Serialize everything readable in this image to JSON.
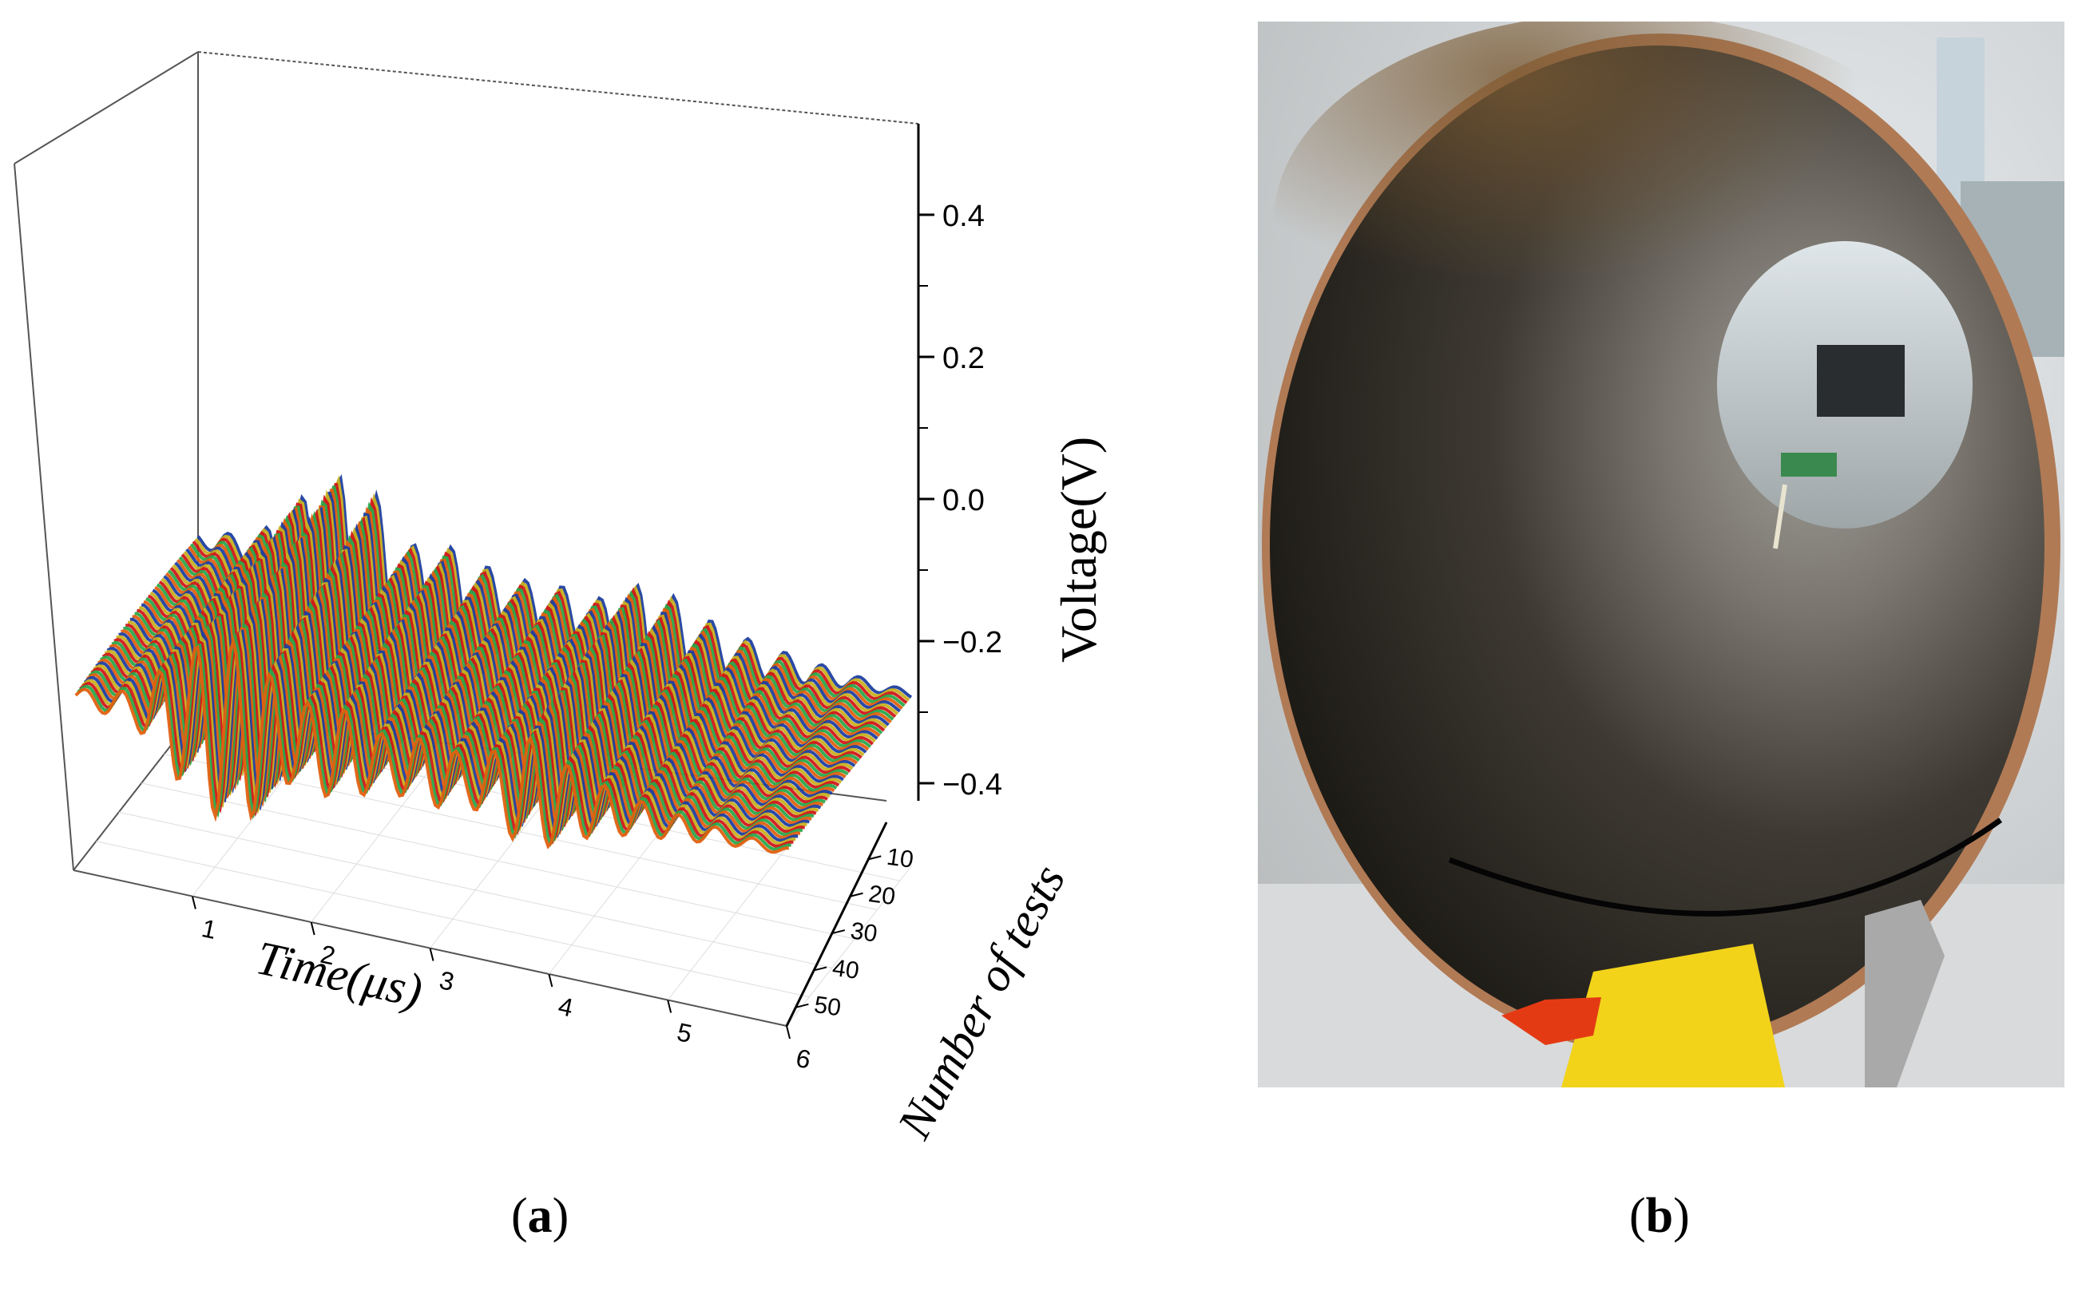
{
  "figure": {
    "caption_a": "a",
    "caption_b": "b"
  },
  "chart_data": {
    "type": "3d-waterfall-line",
    "title": "",
    "xlabel": "Time(μs)",
    "ylabel": "Number of tests",
    "zlabel": "Voltage(V)",
    "x_ticks": [
      "1",
      "2",
      "3",
      "4",
      "5",
      "6"
    ],
    "y_ticks": [
      "10",
      "20",
      "30",
      "40",
      "50"
    ],
    "z_ticks": [
      "0.4",
      "0.2",
      "0.0",
      "−0.2",
      "−0.4"
    ],
    "xlim": [
      0,
      6
    ],
    "ylim": [
      0,
      55
    ],
    "zlim": [
      -0.5,
      0.5
    ],
    "grid": true,
    "colormap": [
      "#1f3fa0",
      "#2aa84a",
      "#c8b020",
      "#e06010",
      "#d01818"
    ],
    "series_count": 55,
    "waveform_envelope": {
      "x": [
        0.0,
        0.5,
        0.85,
        1.2,
        1.5,
        1.8,
        2.2,
        2.6,
        3.0,
        3.3,
        3.6,
        3.8,
        4.2,
        4.6,
        5.0,
        5.5,
        6.0
      ],
      "amplitude": [
        0.02,
        0.05,
        0.18,
        0.27,
        0.24,
        0.12,
        0.14,
        0.08,
        0.1,
        0.07,
        0.12,
        0.17,
        0.1,
        0.06,
        0.04,
        0.02,
        0.01
      ]
    }
  },
  "photo": {
    "subject": "corroded pipe interior"
  }
}
